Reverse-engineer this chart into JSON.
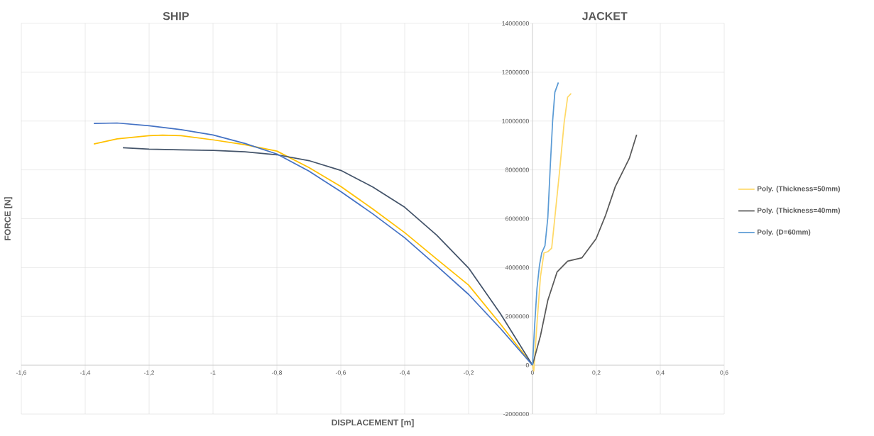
{
  "chart_data": {
    "type": "line",
    "xlabel": "DISPLACEMENT [m]",
    "ylabel": "FORCE [N]",
    "annotations": [
      "SHIP",
      "JACKET"
    ],
    "xlim": [
      -1.6,
      0.6
    ],
    "ylim": [
      -2000000,
      14000000
    ],
    "xticks": [
      {
        "value": -1.6,
        "label": "-1,6"
      },
      {
        "value": -1.4,
        "label": "-1,4"
      },
      {
        "value": -1.2,
        "label": "-1,2"
      },
      {
        "value": -1,
        "label": "-1"
      },
      {
        "value": -0.8,
        "label": "-0,8"
      },
      {
        "value": -0.6,
        "label": "-0,6"
      },
      {
        "value": -0.4,
        "label": "-0,4"
      },
      {
        "value": -0.2,
        "label": "-0,2"
      },
      {
        "value": 0,
        "label": "0"
      },
      {
        "value": 0.2,
        "label": "0,2"
      },
      {
        "value": 0.4,
        "label": "0,4"
      },
      {
        "value": 0.6,
        "label": "0,6"
      }
    ],
    "yticks": [
      -2000000,
      0,
      2000000,
      4000000,
      6000000,
      8000000,
      10000000,
      12000000,
      14000000
    ],
    "grid": true,
    "legend": "right",
    "marker": "none",
    "line_style": "solid",
    "series": [
      {
        "color": "#ffc000",
        "x": [
          -1.373,
          -1.3,
          -1.2,
          -1.158,
          -1.1,
          -1.0,
          -0.9,
          -0.8,
          -0.7,
          -0.6,
          -0.5,
          -0.4,
          -0.3,
          -0.2,
          -0.1,
          0
        ],
        "values": [
          9060000,
          9270000,
          9400000,
          9420000,
          9400000,
          9230000,
          9030000,
          8770000,
          8100000,
          7320000,
          6400000,
          5430000,
          4350000,
          3280000,
          1680000,
          0
        ]
      },
      {
        "color": "#44546a",
        "x": [
          -1.282,
          -1.2,
          -1.1,
          -1.0,
          -0.9,
          -0.8,
          -0.7,
          -0.6,
          -0.5,
          -0.4,
          -0.3,
          -0.2,
          -0.1,
          0
        ],
        "values": [
          8910000,
          8850000,
          8820000,
          8800000,
          8740000,
          8620000,
          8380000,
          7980000,
          7300000,
          6470000,
          5330000,
          3980000,
          2100000,
          0
        ]
      },
      {
        "color": "#4472c4",
        "x": [
          -1.373,
          -1.3,
          -1.2,
          -1.1,
          -1.0,
          -0.9,
          -0.8,
          -0.7,
          -0.6,
          -0.5,
          -0.4,
          -0.3,
          -0.2,
          -0.1,
          0
        ],
        "values": [
          9900000,
          9920000,
          9810000,
          9650000,
          9430000,
          9080000,
          8650000,
          7950000,
          7110000,
          6200000,
          5220000,
          4070000,
          2900000,
          1500000,
          0
        ]
      },
      {
        "name": "Poly. (Thickness=50mm)",
        "color": "#ffd966",
        "x": [
          0,
          0.004,
          0.014,
          0.025,
          0.036,
          0.048,
          0.06,
          0.07,
          0.085,
          0.099,
          0.11,
          0.121
        ],
        "values": [
          0,
          -240000,
          1690000,
          3630000,
          4600000,
          4650000,
          4790000,
          6050000,
          7980000,
          9930000,
          10980000,
          11130000
        ]
      },
      {
        "name": "Poly. (Thickness=40mm)",
        "color": "#595959",
        "x": [
          0,
          0.025,
          0.048,
          0.077,
          0.11,
          0.155,
          0.199,
          0.229,
          0.259,
          0.303,
          0.326
        ],
        "values": [
          0,
          1210000,
          2660000,
          3820000,
          4260000,
          4400000,
          5180000,
          6150000,
          7310000,
          8470000,
          9440000
        ]
      },
      {
        "name": "Poly. (D=60mm)",
        "color": "#5b9bd5",
        "x": [
          0,
          0.007,
          0.014,
          0.022,
          0.029,
          0.039,
          0.048,
          0.055,
          0.063,
          0.07,
          0.081
        ],
        "values": [
          0,
          1690000,
          3140000,
          4110000,
          4600000,
          4890000,
          6050000,
          7980000,
          10000000,
          11180000,
          11580000
        ]
      }
    ]
  }
}
